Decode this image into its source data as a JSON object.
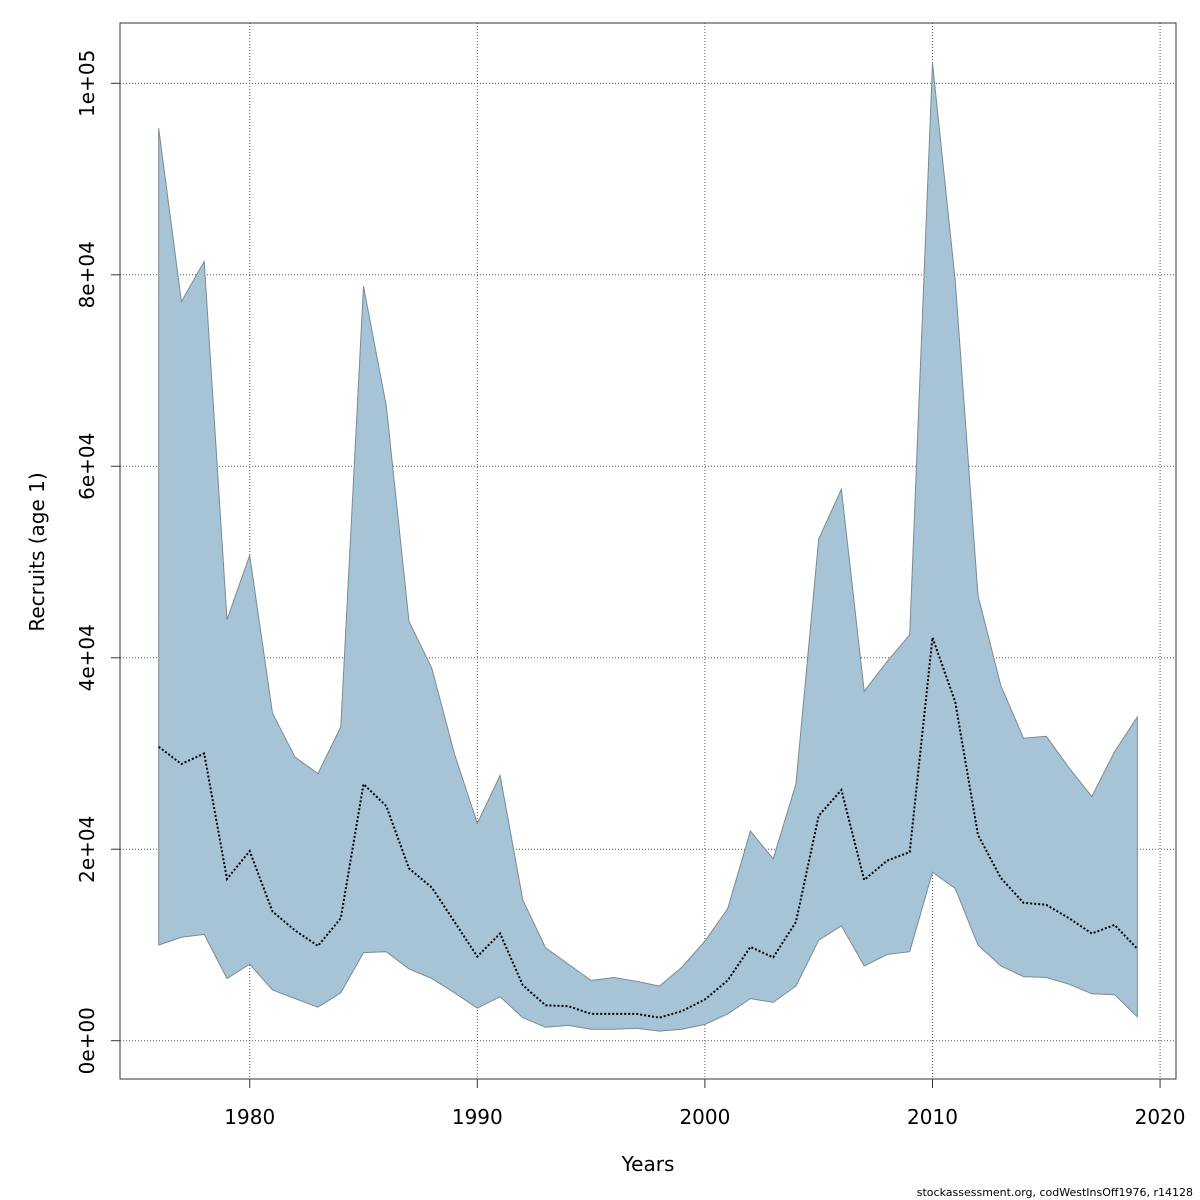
{
  "chart_data": {
    "type": "area",
    "title": "",
    "xlabel": "Years",
    "ylabel": "Recruits (age 1)",
    "xlim": [
      1974.3,
      2020.7
    ],
    "ylim": [
      -4000,
      106300
    ],
    "x_ticks": [
      1980,
      1990,
      2000,
      2010,
      2020
    ],
    "x_tick_labels": [
      "1980",
      "1990",
      "2000",
      "2010",
      "2020"
    ],
    "y_ticks": [
      0,
      20000,
      40000,
      60000,
      80000,
      100000
    ],
    "y_tick_labels": [
      "0e+00",
      "2e+04",
      "4e+04",
      "6e+04",
      "8e+04",
      "1e+05"
    ],
    "grid": true,
    "colors": {
      "band_fill": "#a6c4d5",
      "band_edge": "#7a8a94",
      "estimate_line": "#000000",
      "grid": "#555555"
    },
    "x": [
      1976,
      1977,
      1978,
      1979,
      1980,
      1981,
      1982,
      1983,
      1984,
      1985,
      1986,
      1987,
      1988,
      1989,
      1990,
      1991,
      1992,
      1993,
      1994,
      1995,
      1996,
      1997,
      1998,
      1999,
      2000,
      2001,
      2002,
      2003,
      2004,
      2005,
      2006,
      2007,
      2008,
      2009,
      2010,
      2011,
      2012,
      2013,
      2014,
      2015,
      2016,
      2017,
      2018,
      2019
    ],
    "series": [
      {
        "role": "estimate",
        "style": "dotted",
        "values": [
          30700,
          28900,
          30000,
          16900,
          19800,
          13500,
          11500,
          9900,
          12800,
          26800,
          24500,
          18000,
          16000,
          12400,
          8800,
          11200,
          5800,
          3700,
          3600,
          2800,
          2800,
          2800,
          2400,
          3100,
          4300,
          6300,
          9800,
          8700,
          12400,
          23500,
          26200,
          16800,
          18800,
          19700,
          42100,
          35400,
          21500,
          17000,
          14400,
          14200,
          12800,
          11200,
          12100,
          9600
        ]
      },
      {
        "role": "lower",
        "values": [
          10000,
          10800,
          11100,
          6500,
          8000,
          5300,
          4400,
          3500,
          5000,
          9200,
          9300,
          7500,
          6500,
          5000,
          3400,
          4600,
          2400,
          1400,
          1600,
          1200,
          1200,
          1300,
          1000,
          1200,
          1700,
          2800,
          4400,
          4000,
          5700,
          10500,
          12000,
          7800,
          9000,
          9300,
          17600,
          15900,
          10000,
          7800,
          6700,
          6600,
          5900,
          4900,
          4800,
          2500
        ]
      },
      {
        "role": "upper",
        "values": [
          95300,
          77200,
          81400,
          44000,
          50700,
          34200,
          29600,
          27900,
          32800,
          78800,
          66300,
          43800,
          38900,
          29900,
          22700,
          27700,
          14700,
          9700,
          8000,
          6300,
          6600,
          6200,
          5700,
          7700,
          10400,
          13800,
          21900,
          19000,
          26800,
          52400,
          57600,
          36500,
          39600,
          42400,
          102100,
          79400,
          46500,
          37100,
          31600,
          31800,
          28500,
          25500,
          30200,
          33800
        ]
      }
    ],
    "footnote": "stockassessment.org, codWestInsOff1976, r14128"
  }
}
